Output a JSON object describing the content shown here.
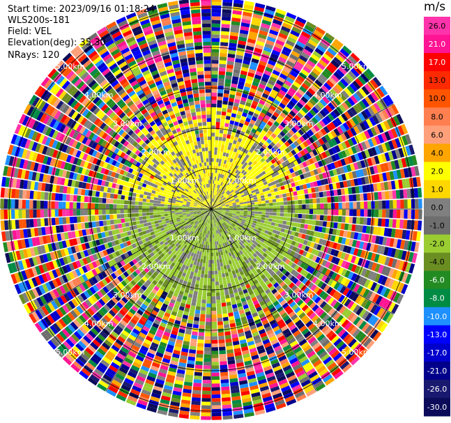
{
  "header": {
    "start_time": "Start time: 2023/09/16 01:18:24",
    "station": "WLS200s-181",
    "field": "Field: VEL",
    "elevation": "Elevation(deg): 35.30",
    "nrays": "NRays: 120"
  },
  "colorbar": {
    "unit": "m/s",
    "ticks": [
      "26.0",
      "21.0",
      "17.0",
      "13.0",
      "10.0",
      "8.0",
      "6.0",
      "4.0",
      "2.0",
      "1.0",
      "0.0",
      "-1.0",
      "-2.0",
      "-4.0",
      "-6.0",
      "-8.0",
      "-10.0",
      "-13.0",
      "-17.0",
      "-21.0",
      "-26.0",
      "-30.0"
    ],
    "colors": [
      "#ff33aa",
      "#ff1493",
      "#ff0000",
      "#ff2a00",
      "#ff5500",
      "#ff7f50",
      "#ffa07a",
      "#ffa500",
      "#ffff00",
      "#ffd700",
      "#808080",
      "#6e6e6e",
      "#9acd32",
      "#6b8e23",
      "#228b22",
      "#008b45",
      "#1e90ff",
      "#0000ff",
      "#0000cd",
      "#00008b",
      "#191970",
      "#0b0b5a"
    ]
  },
  "chart_data": {
    "type": "ppi-radar",
    "field": "VEL",
    "units": "m/s",
    "nrays": 120,
    "elevation_deg": 35.3,
    "range_rings_km": [
      "1.00km",
      "2.00km",
      "3.00km",
      "4.00km",
      "5.00km"
    ],
    "value_range": [
      -30.0,
      26.0
    ]
  }
}
